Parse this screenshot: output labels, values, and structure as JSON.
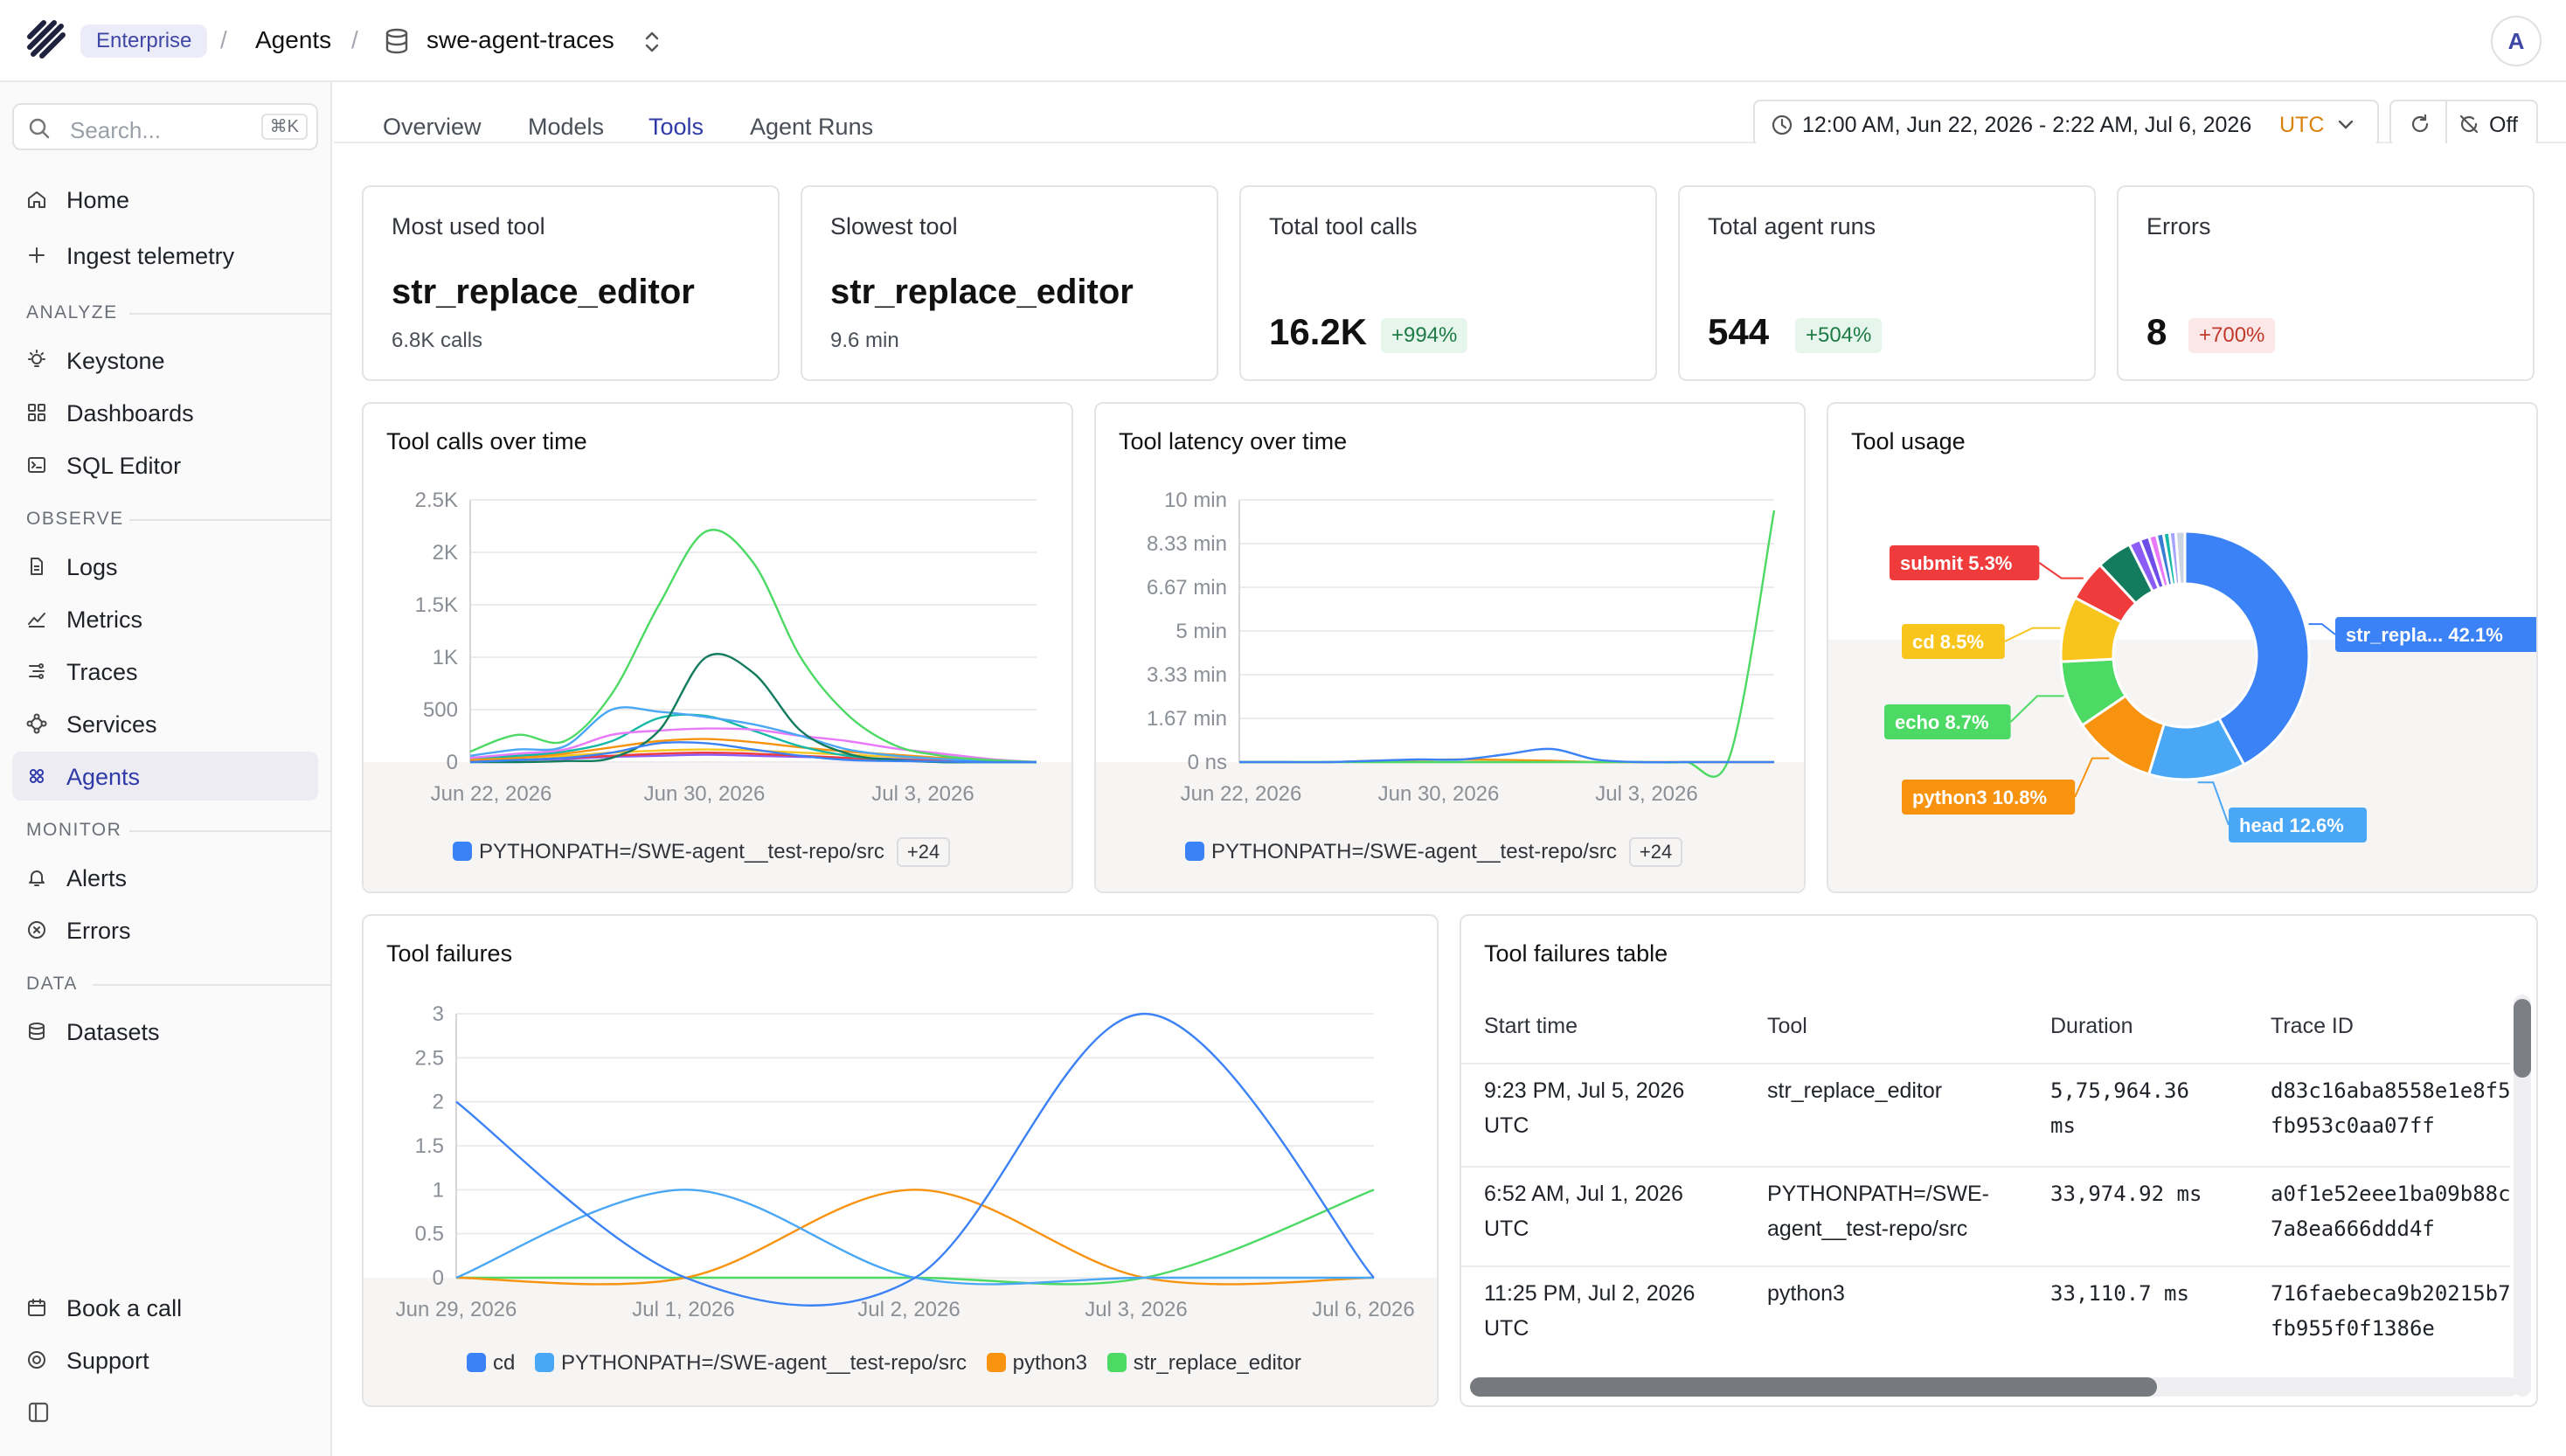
{
  "topbar": {
    "plan_badge": "Enterprise",
    "crumb_sep": "/",
    "crumb_agents": "Agents",
    "crumb_project": "swe-agent-traces",
    "avatar_initial": "A"
  },
  "sidebar": {
    "search_placeholder": "Search...",
    "search_shortcut": "⌘K",
    "top_items": [
      {
        "label": "Home",
        "icon": "home-icon"
      },
      {
        "label": "Ingest telemetry",
        "icon": "plus-icon"
      }
    ],
    "sections": [
      {
        "title": "ANALYZE",
        "items": [
          {
            "label": "Keystone",
            "icon": "lightbulb-icon"
          },
          {
            "label": "Dashboards",
            "icon": "dashboard-icon"
          },
          {
            "label": "SQL Editor",
            "icon": "terminal-icon"
          }
        ]
      },
      {
        "title": "OBSERVE",
        "items": [
          {
            "label": "Logs",
            "icon": "document-icon"
          },
          {
            "label": "Metrics",
            "icon": "chart-line-icon"
          },
          {
            "label": "Traces",
            "icon": "traces-icon"
          },
          {
            "label": "Services",
            "icon": "services-icon"
          },
          {
            "label": "Agents",
            "icon": "agents-icon",
            "active": true
          }
        ]
      },
      {
        "title": "MONITOR",
        "items": [
          {
            "label": "Alerts",
            "icon": "bell-icon"
          },
          {
            "label": "Errors",
            "icon": "error-circle-icon"
          }
        ]
      },
      {
        "title": "DATA",
        "items": [
          {
            "label": "Datasets",
            "icon": "database-icon"
          }
        ]
      }
    ],
    "bottom_items": [
      {
        "label": "Book a call",
        "icon": "calendar-icon"
      },
      {
        "label": "Support",
        "icon": "support-icon"
      }
    ]
  },
  "tabs": [
    {
      "label": "Overview"
    },
    {
      "label": "Models"
    },
    {
      "label": "Tools",
      "active": true
    },
    {
      "label": "Agent Runs"
    }
  ],
  "time_range": {
    "label": "12:00 AM, Jun 22, 2026 - 2:22 AM, Jul 6, 2026",
    "timezone": "UTC"
  },
  "auto_refresh": {
    "label": "Off"
  },
  "stats": {
    "most_used": {
      "title": "Most used tool",
      "value": "str_replace_editor",
      "sub": "6.8K calls"
    },
    "slowest": {
      "title": "Slowest tool",
      "value": "str_replace_editor",
      "sub": "9.6 min"
    },
    "total_calls": {
      "title": "Total tool calls",
      "value": "16.2K",
      "delta": "+994%"
    },
    "total_runs": {
      "title": "Total agent runs",
      "value": "544",
      "delta": "+504%"
    },
    "errors": {
      "title": "Errors",
      "value": "8",
      "delta": "+700%"
    }
  },
  "colors": {
    "blue": "#3b82f6",
    "lightblue": "#4aa7f5",
    "green": "#4cd964",
    "darkgreen": "#137c5e",
    "orange": "#f7930f",
    "yellow": "#f8c51c",
    "red": "#ef3b3b",
    "purple": "#8b5cf6",
    "pink": "#e879f9",
    "teal": "#14b8a6",
    "accent": "#2f3aa8"
  },
  "panels": {
    "calls_title": "Tool calls over time",
    "latency_title": "Tool latency over time",
    "usage_title": "Tool usage",
    "failures_title": "Tool failures",
    "table_title": "Tool failures table"
  },
  "chart_data": [
    {
      "id": "tool_calls",
      "type": "line",
      "title": "Tool calls over time",
      "x_ticks": [
        "Jun 22, 2026",
        "Jun 30, 2026",
        "Jul 3, 2026"
      ],
      "y_ticks": [
        "0",
        "500",
        "1K",
        "1.5K",
        "2K",
        "2.5K"
      ],
      "ylim": [
        0,
        2500
      ],
      "x": [
        0,
        1,
        2,
        3,
        4,
        5,
        6,
        7,
        8,
        9,
        10,
        11,
        12
      ],
      "series": [
        {
          "name": "PYTHONPATH=/SWE-agent__test-repo/src",
          "color": "#3b82f6",
          "values": [
            0,
            20,
            40,
            90,
            180,
            180,
            120,
            60,
            20,
            10,
            5,
            0,
            0
          ]
        },
        {
          "values": [
            100,
            260,
            200,
            650,
            1500,
            2200,
            1900,
            1000,
            450,
            160,
            60,
            20,
            0
          ],
          "color": "#4cd964"
        },
        {
          "values": [
            0,
            0,
            10,
            40,
            300,
            1000,
            850,
            300,
            80,
            20,
            0,
            0,
            0
          ],
          "color": "#137c5e"
        },
        {
          "values": [
            60,
            120,
            150,
            500,
            480,
            430,
            360,
            250,
            120,
            60,
            30,
            10,
            0
          ],
          "color": "#4aa7f5"
        },
        {
          "values": [
            40,
            80,
            120,
            260,
            300,
            320,
            310,
            250,
            200,
            130,
            80,
            30,
            0
          ],
          "color": "#e879f9"
        },
        {
          "values": [
            40,
            60,
            100,
            200,
            420,
            440,
            300,
            150,
            60,
            20,
            0,
            0,
            0
          ],
          "color": "#14b8a6"
        },
        {
          "values": [
            20,
            40,
            80,
            140,
            200,
            220,
            190,
            140,
            100,
            70,
            40,
            20,
            0
          ],
          "color": "#f7930f"
        },
        {
          "values": [
            20,
            40,
            60,
            90,
            110,
            120,
            110,
            90,
            70,
            50,
            30,
            10,
            0
          ],
          "color": "#f8c51c"
        },
        {
          "values": [
            10,
            20,
            40,
            60,
            80,
            90,
            80,
            60,
            40,
            20,
            10,
            5,
            0
          ],
          "color": "#ef3b3b"
        },
        {
          "values": [
            10,
            20,
            30,
            50,
            60,
            70,
            60,
            50,
            40,
            30,
            20,
            10,
            0
          ],
          "color": "#8b5cf6"
        }
      ],
      "legend": {
        "label": "PYTHONPATH=/SWE-agent__test-repo/src",
        "more": "+24"
      }
    },
    {
      "id": "tool_latency",
      "type": "line",
      "title": "Tool latency over time",
      "x_ticks": [
        "Jun 22, 2026",
        "Jun 30, 2026",
        "Jul 3, 2026"
      ],
      "y_ticks": [
        "0 ns",
        "1.67 min",
        "3.33 min",
        "5 min",
        "6.67 min",
        "8.33 min",
        "10 min"
      ],
      "ylim": [
        0,
        10
      ],
      "x": [
        0,
        1,
        2,
        3,
        4,
        5,
        6,
        7,
        8,
        9,
        10,
        11,
        12
      ],
      "series": [
        {
          "name": "PYTHONPATH=/SWE-agent__test-repo/src",
          "color": "#3b82f6",
          "values": [
            0,
            0,
            0,
            0.05,
            0.1,
            0.1,
            0.3,
            0.5,
            0.1,
            0,
            0,
            0,
            0
          ]
        },
        {
          "values": [
            0,
            0,
            0,
            0,
            0,
            0,
            0,
            0,
            0,
            0,
            0,
            0.2,
            9.6
          ],
          "color": "#4cd964"
        },
        {
          "values": [
            0,
            0,
            0,
            0.05,
            0.08,
            0.1,
            0.08,
            0.05,
            0,
            0,
            0,
            0,
            0
          ],
          "color": "#f7930f"
        }
      ],
      "legend": {
        "label": "PYTHONPATH=/SWE-agent__test-repo/src",
        "more": "+24"
      }
    },
    {
      "id": "tool_usage",
      "type": "pie",
      "title": "Tool usage",
      "slices": [
        {
          "label": "str_repla... 42.1%",
          "value": 42.1,
          "color": "#3b82f6",
          "show": true
        },
        {
          "label": "head 12.6%",
          "value": 12.6,
          "color": "#4aa7f5",
          "show": true
        },
        {
          "label": "python3 10.8%",
          "value": 10.8,
          "color": "#f7930f",
          "show": true
        },
        {
          "label": "echo 8.7%",
          "value": 8.7,
          "color": "#4cd964",
          "show": true
        },
        {
          "label": "cd 8.5%",
          "value": 8.5,
          "color": "#f8c51c",
          "show": true
        },
        {
          "label": "submit 5.3%",
          "value": 5.3,
          "color": "#ef3b3b",
          "show": true
        },
        {
          "label": "",
          "value": 4.6,
          "color": "#137c5e",
          "show": false
        },
        {
          "label": "",
          "value": 1.5,
          "color": "#8b5cf6",
          "show": false
        },
        {
          "label": "",
          "value": 1.2,
          "color": "#6d4ee8",
          "show": false
        },
        {
          "label": "",
          "value": 1.0,
          "color": "#e879f9",
          "show": false
        },
        {
          "label": "",
          "value": 0.9,
          "color": "#3a7bd5",
          "show": false
        },
        {
          "label": "",
          "value": 0.8,
          "color": "#14b8a6",
          "show": false
        },
        {
          "label": "",
          "value": 0.8,
          "color": "#a3a3ff",
          "show": false
        },
        {
          "label": "",
          "value": 1.2,
          "color": "#cbd5e1",
          "show": false
        }
      ]
    },
    {
      "id": "tool_failures",
      "type": "line",
      "title": "Tool failures",
      "x_ticks": [
        "Jun 29, 2026",
        "Jul 1, 2026",
        "Jul 2, 2026",
        "Jul 3, 2026",
        "Jul 6, 2026"
      ],
      "y_ticks": [
        "0",
        "0.5",
        "1",
        "1.5",
        "2",
        "2.5",
        "3"
      ],
      "ylim": [
        0,
        3
      ],
      "x": [
        0,
        1,
        2,
        3,
        4
      ],
      "series": [
        {
          "name": "cd",
          "color": "#3b82f6",
          "values": [
            2,
            0,
            0,
            3,
            0
          ]
        },
        {
          "name": "PYTHONPATH=/SWE-agent__test-repo/src",
          "color": "#4aa7f5",
          "values": [
            0,
            1,
            0,
            0,
            0
          ]
        },
        {
          "name": "python3",
          "color": "#f7930f",
          "values": [
            0,
            0,
            1,
            0,
            0
          ]
        },
        {
          "name": "str_replace_editor",
          "color": "#4cd964",
          "values": [
            0,
            0,
            0,
            0,
            1
          ]
        }
      ]
    }
  ],
  "failures_table": {
    "columns": [
      "Start time",
      "Tool",
      "Duration",
      "Trace ID"
    ],
    "rows": [
      {
        "start": [
          "9:23 PM, Jul 5, 2026",
          "UTC"
        ],
        "tool": [
          "str_replace_editor"
        ],
        "duration": [
          "5,75,964.36",
          "ms"
        ],
        "trace": [
          "d83c16aba8558e1e8f5",
          "fb953c0aa07ff"
        ]
      },
      {
        "start": [
          "6:52 AM, Jul 1, 2026",
          "UTC"
        ],
        "tool": [
          "PYTHONPATH=/SWE-",
          "agent__test-repo/src"
        ],
        "duration": [
          "33,974.92 ms"
        ],
        "trace": [
          "a0f1e52eee1ba09b88c",
          "7a8ea666ddd4f"
        ]
      },
      {
        "start": [
          "11:25 PM, Jul 2, 2026",
          "UTC"
        ],
        "tool": [
          "python3"
        ],
        "duration": [
          "33,110.7 ms"
        ],
        "trace": [
          "716faebeca9b20215b7",
          "fb955f0f1386e"
        ]
      }
    ]
  }
}
